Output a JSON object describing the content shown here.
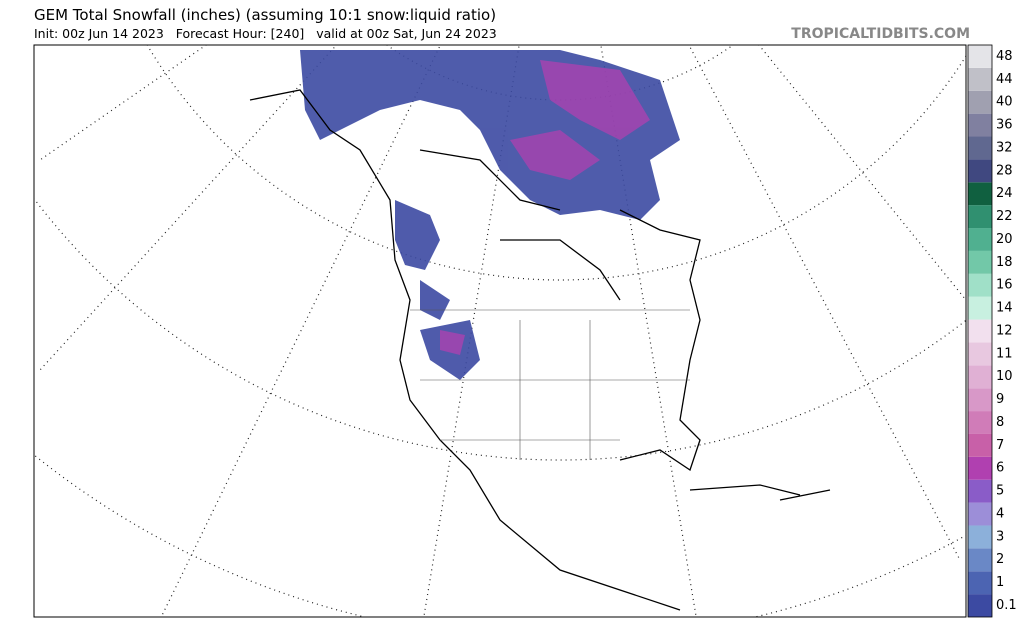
{
  "header": {
    "title": "GEM Total Snowfall (inches) (assuming 10:1 snow:liquid ratio)",
    "subtitle": "Init: 00z Jun 14 2023   Forecast Hour: [240]   valid at 00z Sat, Jun 24 2023",
    "brand": "TROPICALTIDBITS.COM"
  },
  "colorbar": [
    {
      "label": "0.1",
      "color": "#3c4aa2"
    },
    {
      "label": "1",
      "color": "#4c64b2"
    },
    {
      "label": "2",
      "color": "#6a88c6"
    },
    {
      "label": "3",
      "color": "#8cb0da"
    },
    {
      "label": "4",
      "color": "#9c8ed8"
    },
    {
      "label": "5",
      "color": "#8a5cc8"
    },
    {
      "label": "6",
      "color": "#b040b0"
    },
    {
      "label": "7",
      "color": "#c860a8"
    },
    {
      "label": "8",
      "color": "#d07cb8"
    },
    {
      "label": "9",
      "color": "#d898c8"
    },
    {
      "label": "10",
      "color": "#e0b0d4"
    },
    {
      "label": "11",
      "color": "#e8c8e0"
    },
    {
      "label": "12",
      "color": "#f2e0ee"
    },
    {
      "label": "14",
      "color": "#c8f0e0"
    },
    {
      "label": "16",
      "color": "#a0e0c8"
    },
    {
      "label": "18",
      "color": "#72c8a8"
    },
    {
      "label": "20",
      "color": "#50b090"
    },
    {
      "label": "22",
      "color": "#309070"
    },
    {
      "label": "24",
      "color": "#106040"
    },
    {
      "label": "28",
      "color": "#404880"
    },
    {
      "label": "32",
      "color": "#606890"
    },
    {
      "label": "36",
      "color": "#8080a0"
    },
    {
      "label": "40",
      "color": "#a0a0b0"
    },
    {
      "label": "44",
      "color": "#c0c0c8"
    },
    {
      "label": "48",
      "color": "#e4e4e8"
    }
  ]
}
